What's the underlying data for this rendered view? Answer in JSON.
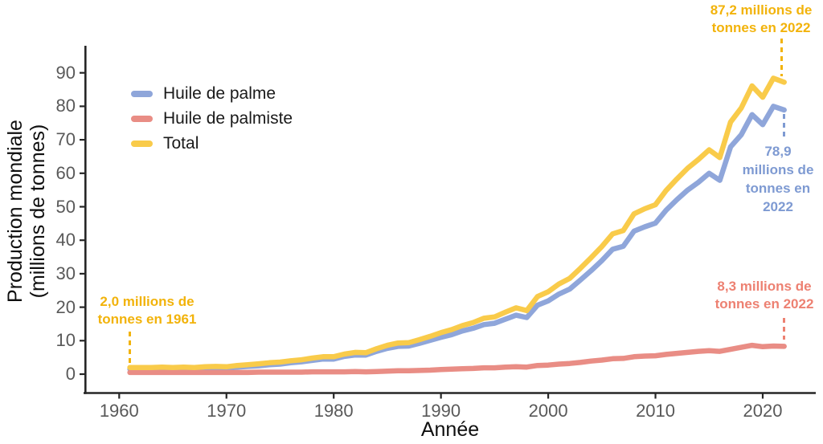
{
  "chart_data": {
    "type": "line",
    "title": "",
    "xlabel": "Année",
    "ylabel": "Production mondiale (millions de tonnes)",
    "ylabel_lines": [
      "Production mondiale",
      "(millions de tonnes)"
    ],
    "grid": false,
    "legend_position": "top-left-inside",
    "x_ticks": [
      1960,
      1970,
      1980,
      1990,
      2000,
      2010,
      2020
    ],
    "y_ticks": [
      0,
      10,
      20,
      30,
      40,
      50,
      60,
      70,
      80,
      90
    ],
    "xlim": [
      1957,
      2025
    ],
    "ylim": [
      0,
      95
    ],
    "x": [
      1961,
      1962,
      1963,
      1964,
      1965,
      1966,
      1967,
      1968,
      1969,
      1970,
      1971,
      1972,
      1973,
      1974,
      1975,
      1976,
      1977,
      1978,
      1979,
      1980,
      1981,
      1982,
      1983,
      1984,
      1985,
      1986,
      1987,
      1988,
      1989,
      1990,
      1991,
      1992,
      1993,
      1994,
      1995,
      1996,
      1997,
      1998,
      1999,
      2000,
      2001,
      2002,
      2003,
      2004,
      2005,
      2006,
      2007,
      2008,
      2009,
      2010,
      2011,
      2012,
      2013,
      2014,
      2015,
      2016,
      2017,
      2018,
      2019,
      2020,
      2021,
      2022
    ],
    "series": [
      {
        "name": "Huile de palme",
        "color": "#8FA6DA",
        "values": [
          1.5,
          1.5,
          1.5,
          1.6,
          1.5,
          1.6,
          1.5,
          1.7,
          1.8,
          1.7,
          2.1,
          2.3,
          2.5,
          2.8,
          3.0,
          3.4,
          3.7,
          4.1,
          4.5,
          4.5,
          5.3,
          5.7,
          5.7,
          6.8,
          7.7,
          8.3,
          8.4,
          9.2,
          10.1,
          11.0,
          11.8,
          12.9,
          13.7,
          14.8,
          15.2,
          16.4,
          17.6,
          16.9,
          20.6,
          21.9,
          23.9,
          25.4,
          28.1,
          30.9,
          33.9,
          37.3,
          38.2,
          42.7,
          44.0,
          45.1,
          49.0,
          52.1,
          55.0,
          57.3,
          60.0,
          57.9,
          67.9,
          71.5,
          77.5,
          74.5,
          80.0,
          78.9
        ]
      },
      {
        "name": "Huile de palmiste",
        "color": "#E98D85",
        "values": [
          0.5,
          0.5,
          0.5,
          0.5,
          0.5,
          0.5,
          0.5,
          0.5,
          0.5,
          0.5,
          0.5,
          0.5,
          0.6,
          0.6,
          0.6,
          0.6,
          0.6,
          0.7,
          0.7,
          0.7,
          0.7,
          0.8,
          0.7,
          0.8,
          0.9,
          1.0,
          1.0,
          1.1,
          1.2,
          1.4,
          1.5,
          1.6,
          1.7,
          1.9,
          1.9,
          2.1,
          2.2,
          2.1,
          2.6,
          2.7,
          3.0,
          3.2,
          3.5,
          3.9,
          4.2,
          4.6,
          4.7,
          5.2,
          5.4,
          5.5,
          5.9,
          6.2,
          6.5,
          6.8,
          7.0,
          6.8,
          7.4,
          8.0,
          8.6,
          8.2,
          8.4,
          8.3
        ]
      },
      {
        "name": "Total",
        "color": "#F9CB4A",
        "values": [
          2.0,
          2.0,
          2.0,
          2.1,
          2.0,
          2.1,
          2.0,
          2.2,
          2.3,
          2.2,
          2.6,
          2.8,
          3.1,
          3.4,
          3.6,
          4.0,
          4.3,
          4.8,
          5.2,
          5.2,
          6.0,
          6.5,
          6.4,
          7.6,
          8.6,
          9.3,
          9.4,
          10.3,
          11.3,
          12.4,
          13.3,
          14.5,
          15.4,
          16.7,
          17.1,
          18.5,
          19.8,
          19.0,
          23.2,
          24.6,
          26.9,
          28.6,
          31.6,
          34.8,
          38.1,
          41.9,
          42.9,
          47.9,
          49.4,
          50.6,
          54.9,
          58.3,
          61.5,
          64.1,
          67.0,
          64.7,
          75.3,
          79.5,
          86.1,
          82.7,
          88.4,
          87.2
        ]
      }
    ],
    "annotations": [
      {
        "id": "total-start",
        "series": "Total",
        "year": 1961,
        "value": 2.0,
        "text": "2,0 millions de tonnes en 1961",
        "lines": [
          "2,0 millions de",
          "tonnes en 1961"
        ],
        "color": "#F2B30B"
      },
      {
        "id": "total-end",
        "series": "Total",
        "year": 2022,
        "value": 87.2,
        "text": "87,2 millions de tonnes en 2022",
        "lines": [
          "87,2 millions de",
          "tonnes en 2022"
        ],
        "color": "#F2B30B"
      },
      {
        "id": "palme-end",
        "series": "Huile de palme",
        "year": 2022,
        "value": 78.9,
        "text": "78,9 millions de tonnes en 2022",
        "lines": [
          "78,9",
          "millions de",
          "tonnes en",
          "2022"
        ],
        "color": "#7E9AD2"
      },
      {
        "id": "palmiste-end",
        "series": "Huile de palmiste",
        "year": 2022,
        "value": 8.3,
        "text": "8,3 millions de tonnes en 2022",
        "lines": [
          "8,3 millions de",
          "tonnes en 2022"
        ],
        "color": "#ED8172"
      }
    ]
  },
  "legend": {
    "items": [
      {
        "label": "Huile de palme",
        "color": "#8FA6DA"
      },
      {
        "label": "Huile de palmiste",
        "color": "#E98D85"
      },
      {
        "label": "Total",
        "color": "#F9CB4A"
      }
    ]
  }
}
